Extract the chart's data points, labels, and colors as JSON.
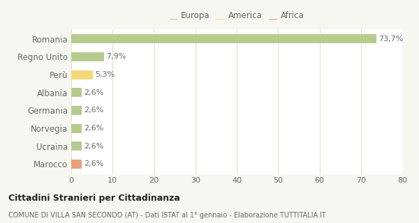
{
  "categories": [
    "Romania",
    "Regno Unito",
    "Perù",
    "Albania",
    "Germania",
    "Norvegia",
    "Ucraina",
    "Marocco"
  ],
  "values": [
    73.7,
    7.9,
    5.3,
    2.6,
    2.6,
    2.6,
    2.6,
    2.6
  ],
  "labels": [
    "73,7%",
    "7,9%",
    "5,3%",
    "2,6%",
    "2,6%",
    "2,6%",
    "2,6%",
    "2,6%"
  ],
  "colors": [
    "#b5cc8e",
    "#b5cc8e",
    "#f5d87a",
    "#b5cc8e",
    "#b5cc8e",
    "#b5cc8e",
    "#b5cc8e",
    "#e8a07a"
  ],
  "legend": [
    {
      "label": "Europa",
      "color": "#b5cc8e"
    },
    {
      "label": "America",
      "color": "#f5d87a"
    },
    {
      "label": "Africa",
      "color": "#e8a07a"
    }
  ],
  "xlim": [
    0,
    80
  ],
  "xticks": [
    0,
    10,
    20,
    30,
    40,
    50,
    60,
    70,
    80
  ],
  "title": "Cittadini Stranieri per Cittadinanza",
  "subtitle": "COMUNE DI VILLA SAN SECONDO (AT) - Dati ISTAT al 1° gennaio - Elaborazione TUTTITALIA.IT",
  "bg_color": "#f7f7f2",
  "plot_bg_color": "#ffffff",
  "grid_color": "#e0e0d0",
  "label_color": "#666666",
  "title_color": "#222222",
  "bar_height": 0.5,
  "label_fontsize": 8,
  "ytick_fontsize": 8.5,
  "xtick_fontsize": 8
}
